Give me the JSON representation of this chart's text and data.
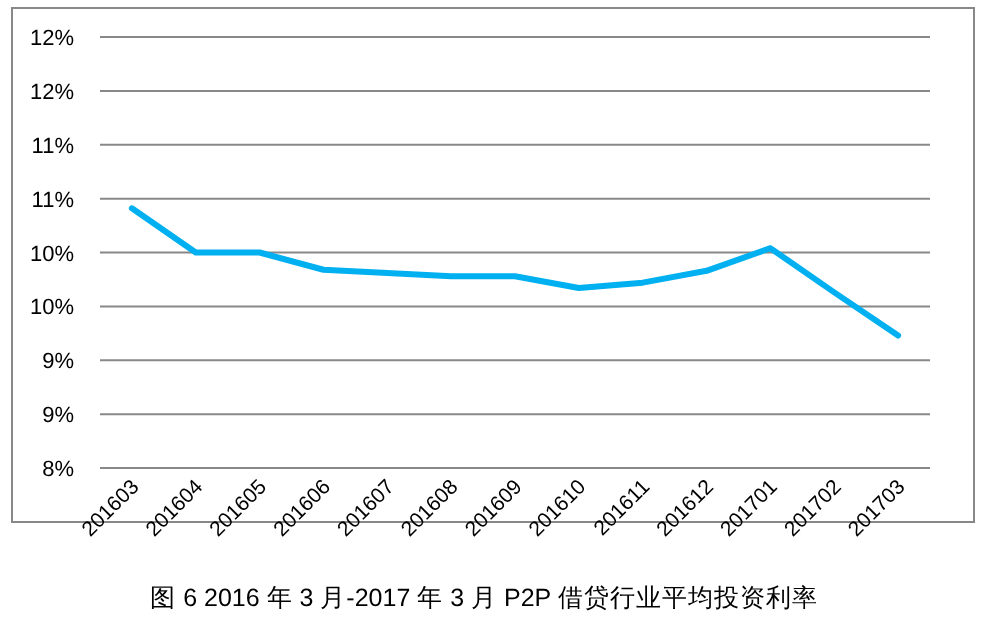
{
  "chart_data": {
    "type": "line",
    "categories": [
      "201603",
      "201604",
      "201605",
      "201606",
      "201607",
      "201608",
      "201609",
      "201610",
      "201611",
      "201612",
      "201701",
      "201702",
      "201703"
    ],
    "series": [
      {
        "color": "#00b0f0",
        "values": [
          10.41,
          10.0,
          10.0,
          9.84,
          9.81,
          9.78,
          9.78,
          9.67,
          9.72,
          9.83,
          10.04,
          9.63,
          9.23
        ]
      }
    ],
    "ylim": [
      8,
      12
    ],
    "yticks": [
      {
        "value": 8,
        "label": "8%"
      },
      {
        "value": 8.5,
        "label": "9%"
      },
      {
        "value": 9,
        "label": "9%"
      },
      {
        "value": 9.5,
        "label": "10%"
      },
      {
        "value": 10,
        "label": "10%"
      },
      {
        "value": 10.5,
        "label": "11%"
      },
      {
        "value": 11,
        "label": "11%"
      },
      {
        "value": 11.5,
        "label": "12%"
      },
      {
        "value": 12,
        "label": "12%"
      }
    ],
    "grid": "y",
    "annotations": [
      "图 6   2016 年 3 月-2017 年 3 月 P2P 借贷行业平均投资利率"
    ]
  }
}
